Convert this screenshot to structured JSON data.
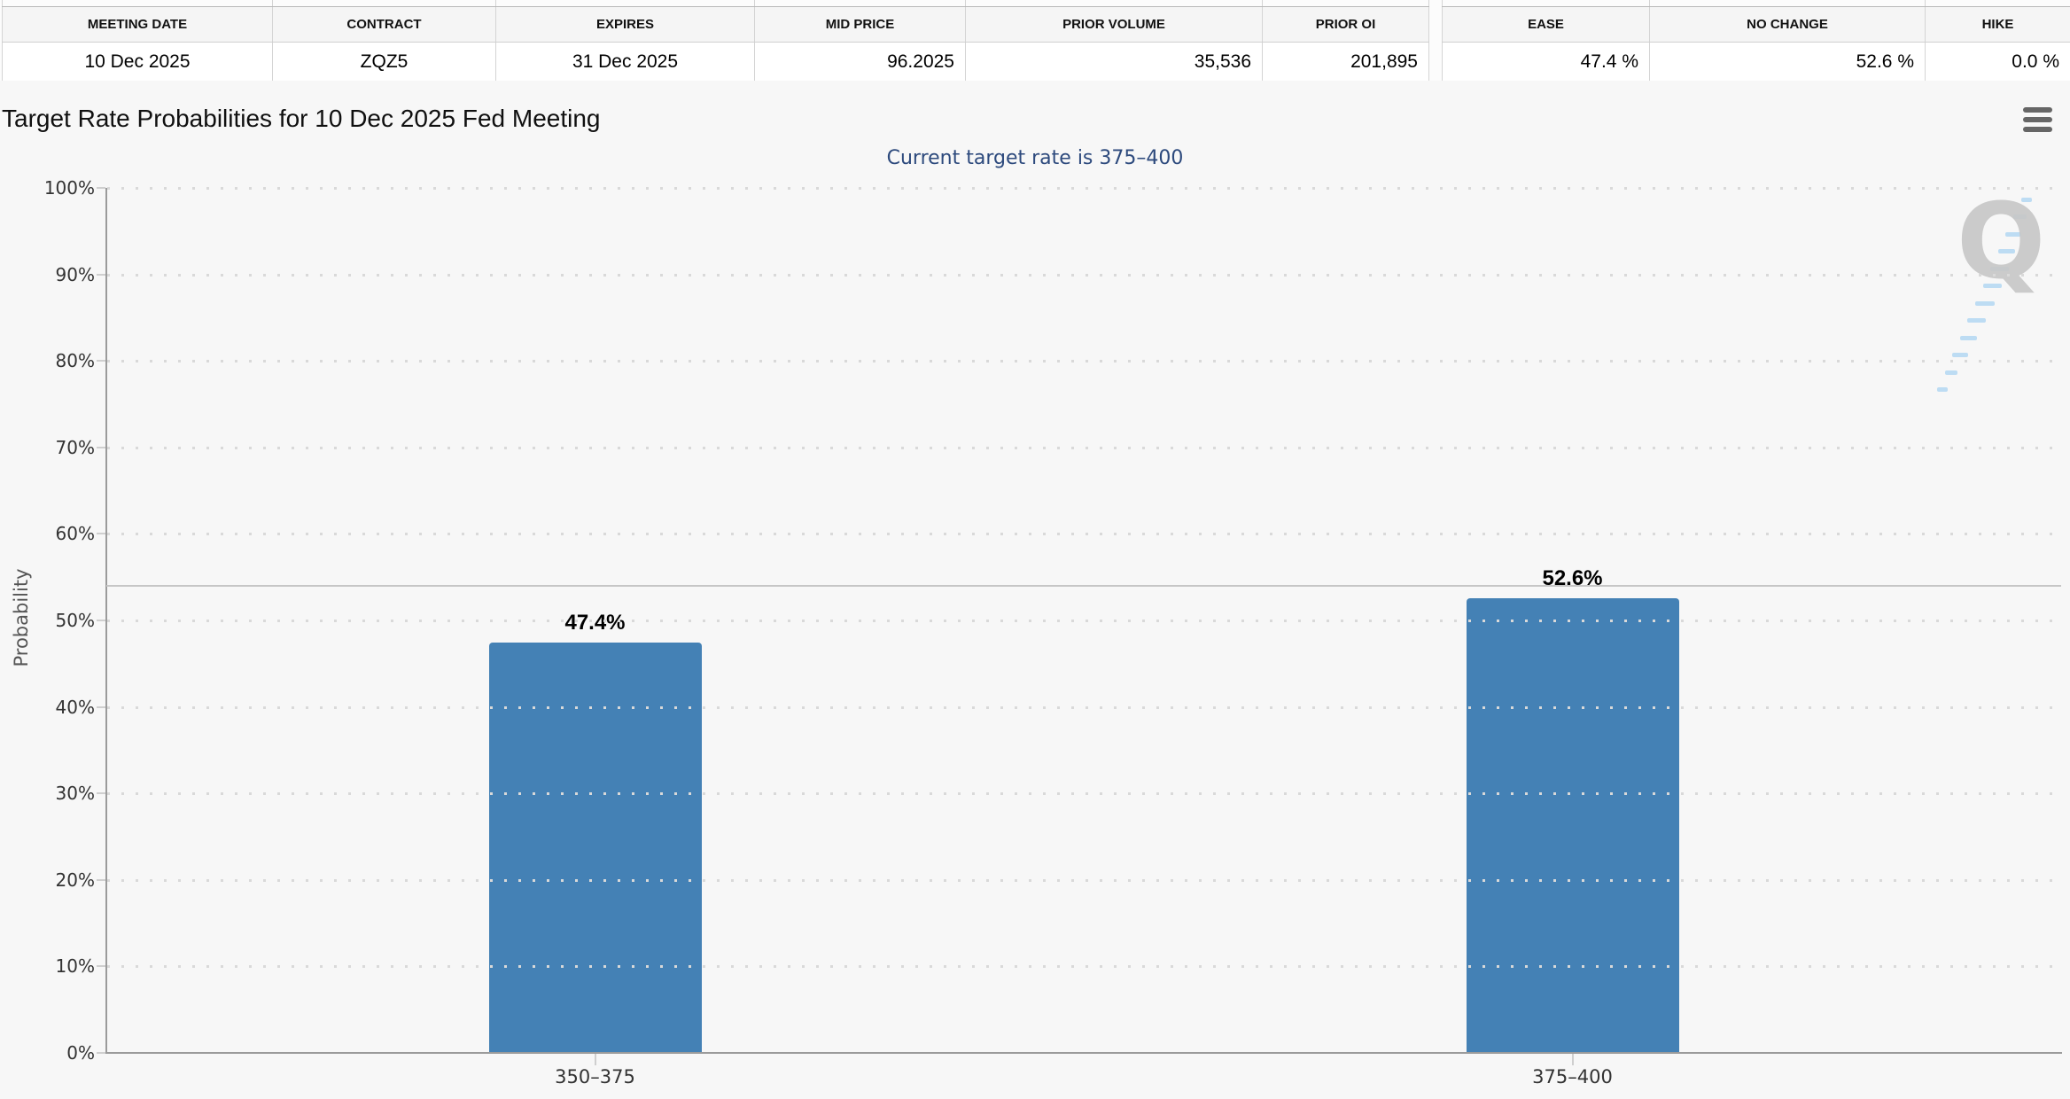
{
  "quote_table": {
    "columns": [
      {
        "header": "MEETING DATE",
        "value": "10 Dec 2025"
      },
      {
        "header": "CONTRACT",
        "value": "ZQZ5"
      },
      {
        "header": "EXPIRES",
        "value": "31 Dec 2025"
      },
      {
        "header": "MID PRICE",
        "value": "96.2025"
      },
      {
        "header": "PRIOR VOLUME",
        "value": "35,536"
      },
      {
        "header": "PRIOR OI",
        "value": "201,895"
      }
    ]
  },
  "probability_summary_table": {
    "columns": [
      {
        "header": "EASE",
        "value": "47.4 %"
      },
      {
        "header": "NO CHANGE",
        "value": "52.6 %"
      },
      {
        "header": "HIKE",
        "value": "0.0 %"
      }
    ]
  },
  "chart": {
    "title": "Target Rate Probabilities for 10 Dec 2025 Fed Meeting",
    "subtitle": "Current target rate is 375–400",
    "subtitle_color": "#2d4a7d",
    "ylabel": "Probability",
    "menu_icon": "hamburger-icon",
    "watermark_letter": "Q"
  },
  "chart_data": {
    "type": "bar",
    "title": "Target Rate Probabilities for 10 Dec 2025 Fed Meeting",
    "subtitle": "Current target rate is 375–400",
    "categories": [
      "350–375",
      "375–400"
    ],
    "values": [
      47.4,
      52.6
    ],
    "value_labels": [
      "47.4%",
      "52.6%"
    ],
    "xlabel": "",
    "ylabel": "Probability",
    "ylim": [
      0,
      100
    ],
    "yticks": [
      "0%",
      "10%",
      "20%",
      "30%",
      "40%",
      "50%",
      "60%",
      "70%",
      "80%",
      "90%",
      "100%"
    ],
    "grid": "dotted horizontal gridlines at 10% steps",
    "reference_line_percent": 54,
    "legend": "none",
    "bar_color": "#4481b5"
  }
}
